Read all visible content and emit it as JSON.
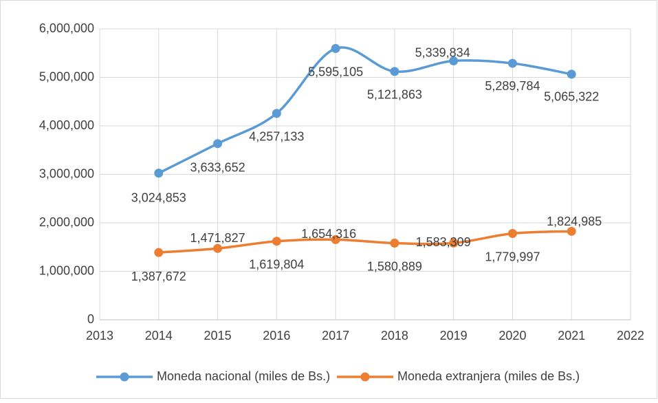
{
  "chart_data": {
    "type": "line",
    "x": [
      2014,
      2015,
      2016,
      2017,
      2018,
      2019,
      2020,
      2021
    ],
    "series": [
      {
        "name": "Moneda nacional (miles de Bs.)",
        "color": "#5b9bd5",
        "values": [
          3024853,
          3633652,
          4257133,
          5595105,
          5121863,
          5339834,
          5289784,
          5065322
        ],
        "value_labels": [
          "3,024,853",
          "3,633,652",
          "4,257,133",
          "5,595,105",
          "5,121,863",
          "5,339,834",
          "5,289,784",
          "5,065,322"
        ]
      },
      {
        "name": "Moneda extranjera (miles de Bs.)",
        "color": "#ed7d31",
        "values": [
          1387672,
          1471827,
          1619804,
          1654316,
          1580889,
          1583309,
          1779997,
          1824985
        ],
        "value_labels": [
          "1,387,672",
          "1,471,827",
          "1,619,804",
          "1,654,316",
          "1,580,889",
          "1,583,309",
          "1,779,997",
          "1,824,985"
        ]
      }
    ],
    "xlim": [
      2013,
      2022
    ],
    "xticks": [
      2013,
      2014,
      2015,
      2016,
      2017,
      2018,
      2019,
      2020,
      2021,
      2022
    ],
    "ylim": [
      0,
      6000000
    ],
    "yticks": [
      0,
      {
        "value": 1000000,
        "label": "1,000,000"
      },
      {
        "value": 2000000,
        "label": "2,000,000"
      },
      {
        "value": 3000000,
        "label": "3,000,000"
      },
      {
        "value": 4000000,
        "label": "4,000,000"
      },
      {
        "value": 5000000,
        "label": "5,000,000"
      },
      {
        "value": 6000000,
        "label": "6,000,000"
      }
    ],
    "grid": true,
    "smooth": true,
    "legend": "bottom"
  }
}
